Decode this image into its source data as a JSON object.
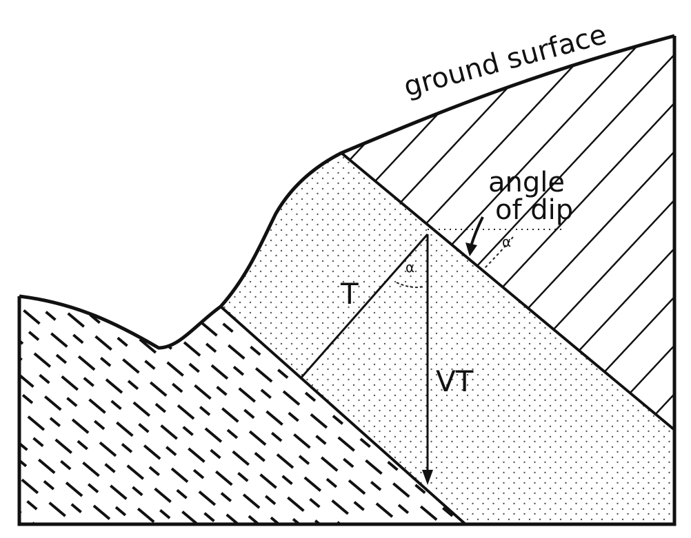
{
  "labels": {
    "ground_surface": "ground surface",
    "angle_line1": "angle",
    "angle_line2": "of dip",
    "thickness": "T",
    "vertical_thickness": "VT",
    "alpha_symbol": "α"
  },
  "colors": {
    "ink": "#111111",
    "background": "#ffffff",
    "stipple": "#555555"
  }
}
